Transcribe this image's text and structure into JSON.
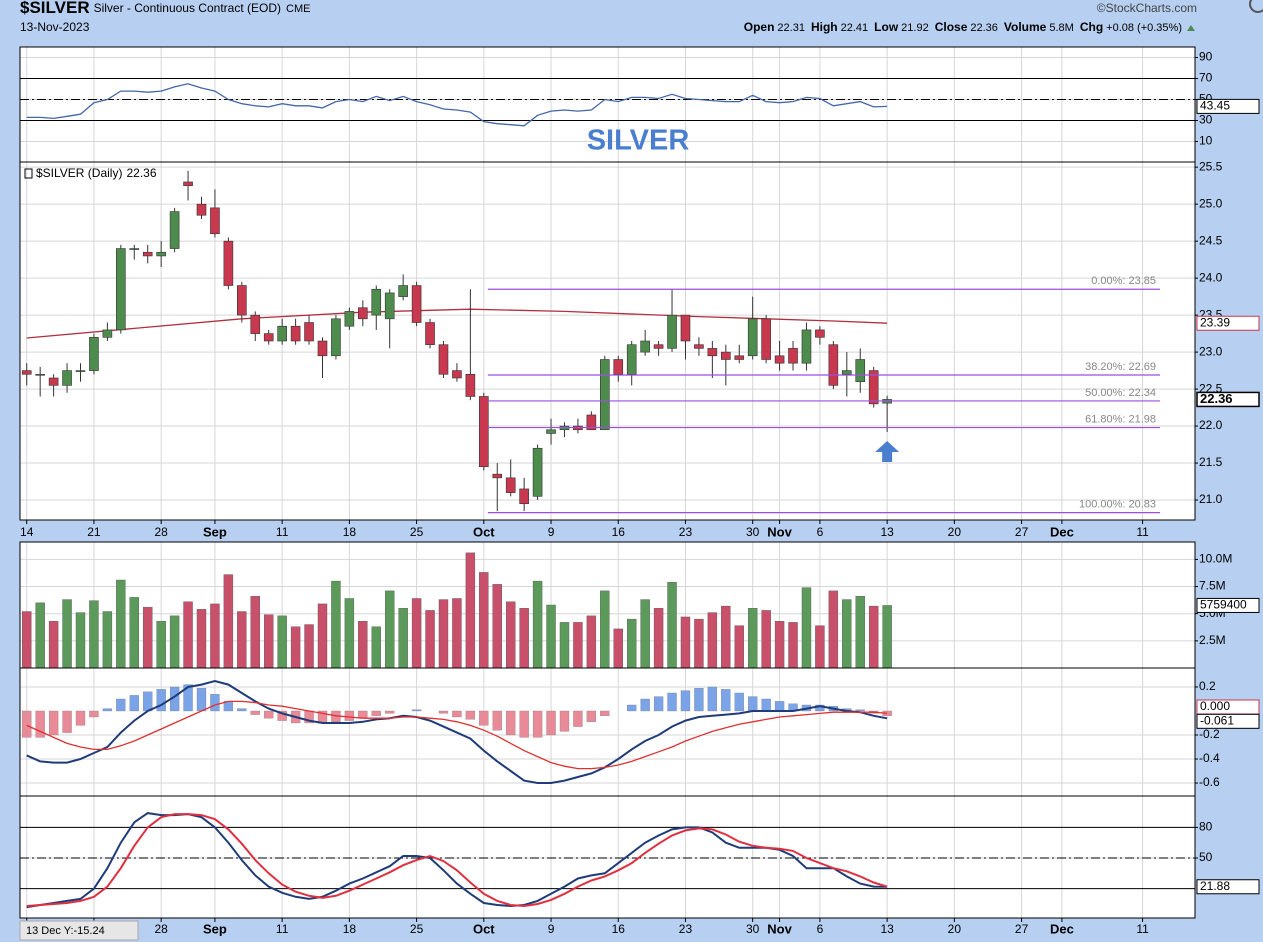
{
  "header": {
    "symbol": "$SILVER",
    "name": "Silver - Continuous Contract (EOD)",
    "exchange": "CME",
    "date": "13-Nov-2023",
    "copyright": "©StockCharts.com",
    "stats": [
      {
        "label": "Open",
        "value": 22.31
      },
      {
        "label": "High",
        "value": 22.41
      },
      {
        "label": "Low",
        "value": 21.92
      },
      {
        "label": "Close",
        "value": 22.36
      },
      {
        "label": "Volume",
        "value": "5.8M"
      },
      {
        "label": "Chg",
        "value": "+0.08 (+0.35%)"
      }
    ]
  },
  "cursor_readout": "13 Dec Y:-15.24",
  "chart_data": [
    {
      "type": "line",
      "ylim": [
        -9.5,
        100
      ],
      "yticks": [
        90,
        70,
        50,
        30,
        10
      ],
      "grid": true,
      "levels": [
        {
          "value": 70,
          "style": "solid"
        },
        {
          "value": 50,
          "style": "dashdot"
        },
        {
          "value": 30,
          "style": "solid"
        }
      ],
      "annotation": {
        "text": "SILVER",
        "color": "#4a7fd0"
      },
      "series": [
        {
          "color": "#4466aa",
          "values": [
            33,
            33,
            32,
            34,
            36,
            47,
            50,
            58,
            58,
            57,
            58,
            62,
            65,
            61,
            58,
            50,
            46,
            44,
            43,
            46,
            44,
            44,
            42,
            48,
            50,
            48,
            53,
            49,
            53,
            48,
            45,
            41,
            40,
            38,
            29,
            27,
            26,
            25,
            35,
            39,
            40,
            39,
            40,
            50,
            48,
            52,
            52,
            51,
            55,
            51,
            50,
            49,
            48,
            48,
            54,
            48,
            47,
            48,
            52,
            51,
            44,
            46,
            48,
            43,
            43.45
          ]
        }
      ]
    },
    {
      "type": "candlestick",
      "legend_text": "$SILVER (Daily)",
      "grid": true,
      "xlim": [
        -0.5,
        86.9
      ],
      "xticks": [
        {
          "value": 0,
          "label": "14"
        },
        {
          "value": 5,
          "label": "21"
        },
        {
          "value": 10,
          "label": "28"
        },
        {
          "value": 14,
          "label": "Sep"
        },
        {
          "value": 19,
          "label": "11"
        },
        {
          "value": 24,
          "label": "18"
        },
        {
          "value": 29,
          "label": "25"
        },
        {
          "value": 34,
          "label": "Oct"
        },
        {
          "value": 39,
          "label": "9"
        },
        {
          "value": 44,
          "label": "16"
        },
        {
          "value": 49,
          "label": "23"
        },
        {
          "value": 54,
          "label": "30"
        },
        {
          "value": 56,
          "label": "Nov"
        },
        {
          "value": 59,
          "label": "6"
        },
        {
          "value": 64,
          "label": "13"
        },
        {
          "value": 69,
          "label": "20"
        },
        {
          "value": 74,
          "label": "27"
        },
        {
          "value": 77,
          "label": "Dec"
        },
        {
          "value": 83,
          "label": "11"
        }
      ],
      "ylim": [
        20.73,
        25.57
      ],
      "yticks": [
        {
          "value": 21,
          "label": "21.0"
        },
        21.5,
        {
          "value": 22,
          "label": "22.0"
        },
        22.5,
        {
          "value": 23,
          "label": "23.0"
        },
        23.5,
        {
          "value": 24,
          "label": "24.0"
        },
        24.5,
        {
          "value": 25,
          "label": "25.0"
        },
        25.5
      ],
      "up_color": "#4e8c4e",
      "down_color": "#c8384e",
      "open": [
        22.75,
        22.7,
        22.65,
        22.55,
        22.75,
        22.75,
        23.2,
        23.3,
        24.4,
        24.35,
        24.3,
        24.4,
        25.3,
        25.0,
        24.95,
        24.5,
        23.9,
        23.5,
        23.25,
        23.15,
        23.35,
        23.4,
        23.15,
        22.95,
        23.35,
        23.6,
        23.5,
        23.45,
        23.75,
        23.9,
        23.4,
        23.1,
        22.75,
        22.7,
        22.4,
        21.35,
        21.3,
        21.15,
        21.05,
        21.9,
        21.95,
        22.0,
        22.15,
        21.95,
        22.9,
        22.7,
        23.0,
        23.1,
        23.05,
        23.5,
        23.1,
        23.05,
        23.0,
        22.95,
        22.95,
        23.45,
        22.95,
        23.05,
        22.85,
        23.3,
        23.1,
        22.7,
        22.6,
        22.75,
        22.31
      ],
      "high": [
        22.85,
        22.8,
        22.7,
        22.85,
        22.85,
        23.25,
        23.4,
        24.45,
        24.45,
        24.45,
        24.5,
        24.95,
        25.45,
        25.1,
        25.2,
        24.55,
        23.95,
        23.55,
        23.3,
        23.45,
        23.45,
        23.5,
        23.2,
        23.5,
        23.6,
        23.7,
        23.9,
        23.85,
        24.05,
        23.95,
        23.45,
        23.15,
        22.85,
        23.85,
        22.45,
        21.5,
        21.55,
        21.3,
        21.75,
        22.1,
        22.05,
        22.1,
        22.2,
        22.95,
        22.95,
        23.15,
        23.3,
        23.15,
        23.85,
        23.5,
        23.2,
        23.15,
        23.1,
        23.1,
        23.75,
        23.5,
        23.15,
        23.15,
        23.4,
        23.35,
        23.15,
        23.0,
        23.05,
        22.8,
        22.41
      ],
      "low": [
        22.55,
        22.4,
        22.4,
        22.45,
        22.6,
        22.7,
        23.15,
        23.25,
        24.25,
        24.2,
        24.15,
        24.35,
        25.05,
        24.8,
        24.55,
        23.85,
        23.4,
        23.15,
        23.1,
        23.1,
        23.1,
        23.1,
        22.65,
        22.9,
        23.3,
        23.35,
        23.3,
        23.05,
        23.7,
        23.35,
        23.05,
        22.65,
        22.6,
        22.35,
        21.4,
        20.85,
        21.05,
        20.85,
        21.0,
        21.75,
        21.85,
        21.9,
        21.95,
        21.95,
        22.6,
        22.55,
        22.95,
        22.95,
        23.0,
        22.9,
        22.95,
        22.65,
        22.55,
        22.85,
        22.9,
        22.85,
        22.75,
        22.75,
        22.75,
        23.1,
        22.5,
        22.4,
        22.45,
        22.25,
        21.92
      ],
      "close": [
        22.7,
        22.7,
        22.55,
        22.75,
        22.75,
        23.2,
        23.3,
        24.4,
        24.4,
        24.3,
        24.35,
        24.9,
        25.25,
        24.85,
        24.6,
        23.9,
        23.5,
        23.25,
        23.15,
        23.35,
        23.15,
        23.15,
        22.95,
        23.45,
        23.55,
        23.45,
        23.85,
        23.8,
        23.9,
        23.4,
        23.1,
        22.7,
        22.65,
        22.4,
        21.45,
        21.3,
        21.1,
        20.95,
        21.7,
        21.95,
        22.0,
        21.95,
        21.95,
        22.9,
        22.7,
        23.1,
        23.15,
        23.05,
        23.5,
        23.15,
        23.05,
        22.95,
        22.9,
        22.9,
        23.45,
        22.9,
        22.85,
        22.85,
        23.3,
        23.2,
        22.55,
        22.75,
        22.9,
        22.3,
        22.36
      ],
      "overlay": {
        "color": "#b03040",
        "x": [
          0,
          8,
          16,
          25,
          33,
          40,
          50,
          60,
          64
        ],
        "values": [
          23.19,
          23.32,
          23.45,
          23.54,
          23.58,
          23.55,
          23.48,
          23.42,
          23.39
        ]
      },
      "fib": {
        "color": "#9b4fe0",
        "x_range": [
          34.3,
          84.3
        ],
        "levels": [
          {
            "label": "0.00%: 23.85",
            "value": 23.85
          },
          {
            "label": "38.20%: 22.69",
            "value": 22.69
          },
          {
            "label": "50.00%: 22.34",
            "value": 22.34
          },
          {
            "label": "61.80%: 21.98",
            "value": 21.98
          },
          {
            "label": "100.00%: 20.83",
            "value": 20.83
          }
        ]
      }
    },
    {
      "type": "bar",
      "grid": true,
      "ylim": [
        0,
        11600000
      ],
      "yticks": [
        {
          "value": 2500000,
          "label": "2.5M"
        },
        {
          "value": 5000000,
          "label": "5.0M"
        },
        {
          "value": 7500000,
          "label": "7.5M"
        },
        {
          "value": 10000000,
          "label": "10.0M"
        }
      ],
      "up_color": "#5b9a5b",
      "down_color": "#c8506a",
      "values": [
        5200000,
        6000000,
        4300000,
        6300000,
        5100000,
        6200000,
        5200000,
        8100000,
        6500000,
        5600000,
        4300000,
        4800000,
        6100000,
        5400000,
        5900000,
        8600000,
        5200000,
        6600000,
        4900000,
        4800000,
        3800000,
        4000000,
        5900000,
        8000000,
        6400000,
        4300000,
        3800000,
        7100000,
        5500000,
        6400000,
        5300000,
        6300000,
        6400000,
        10600000,
        8800000,
        7700000,
        6100000,
        5500000,
        8000000,
        5800000,
        4200000,
        4200000,
        4800000,
        7100000,
        3600000,
        4500000,
        6300000,
        5500000,
        7900000,
        4700000,
        4500000,
        5100000,
        5700000,
        3900000,
        5500000,
        5300000,
        4300000,
        4200000,
        7400000,
        3900000,
        7100000,
        6300000,
        6600000,
        5700000,
        5759400
      ]
    },
    {
      "type": "macd",
      "grid": true,
      "ylim": [
        -0.708,
        0.358
      ],
      "yticks": [
        0.2,
        -0.2,
        -0.4,
        -0.6
      ],
      "zero_tag": {
        "value": 0,
        "label": "0.000"
      },
      "histogram": {
        "up_color": "#7aa3e8",
        "down_color": "#e88a98",
        "values": [
          -0.22,
          -0.22,
          -0.2,
          -0.18,
          -0.12,
          -0.05,
          0.02,
          0.1,
          0.13,
          0.16,
          0.18,
          0.2,
          0.22,
          0.19,
          0.14,
          0.08,
          0.02,
          -0.03,
          -0.06,
          -0.08,
          -0.1,
          -0.1,
          -0.1,
          -0.09,
          -0.08,
          -0.06,
          -0.04,
          -0.02,
          0.0,
          0.01,
          0.0,
          -0.02,
          -0.05,
          -0.07,
          -0.12,
          -0.16,
          -0.2,
          -0.22,
          -0.22,
          -0.2,
          -0.17,
          -0.13,
          -0.09,
          -0.04,
          0.0,
          0.05,
          0.1,
          0.12,
          0.15,
          0.17,
          0.19,
          0.2,
          0.18,
          0.15,
          0.12,
          0.1,
          0.08,
          0.06,
          0.05,
          0.05,
          0.04,
          0.02,
          0.01,
          -0.02,
          -0.04
        ]
      },
      "series": [
        {
          "color": "#1f3c78",
          "values": [
            -0.37,
            -0.42,
            -0.43,
            -0.43,
            -0.4,
            -0.35,
            -0.3,
            -0.18,
            -0.08,
            0.0,
            0.05,
            0.12,
            0.2,
            0.22,
            0.25,
            0.22,
            0.15,
            0.08,
            0.02,
            -0.02,
            -0.05,
            -0.08,
            -0.1,
            -0.1,
            -0.1,
            -0.09,
            -0.07,
            -0.06,
            -0.04,
            -0.05,
            -0.08,
            -0.13,
            -0.18,
            -0.23,
            -0.33,
            -0.42,
            -0.5,
            -0.58,
            -0.6,
            -0.6,
            -0.58,
            -0.55,
            -0.52,
            -0.47,
            -0.4,
            -0.32,
            -0.25,
            -0.2,
            -0.13,
            -0.08,
            -0.05,
            -0.04,
            -0.03,
            -0.02,
            0.0,
            0.0,
            0.0,
            0.0,
            0.02,
            0.04,
            0.02,
            0.0,
            -0.01,
            -0.04,
            -0.061
          ]
        },
        {
          "color": "#e03030",
          "values": [
            -0.12,
            -0.17,
            -0.22,
            -0.27,
            -0.3,
            -0.32,
            -0.32,
            -0.29,
            -0.25,
            -0.2,
            -0.15,
            -0.1,
            -0.05,
            0.0,
            0.05,
            0.08,
            0.08,
            0.07,
            0.05,
            0.04,
            0.02,
            0.0,
            -0.02,
            -0.04,
            -0.05,
            -0.06,
            -0.06,
            -0.06,
            -0.05,
            -0.05,
            -0.06,
            -0.07,
            -0.09,
            -0.12,
            -0.16,
            -0.21,
            -0.27,
            -0.33,
            -0.38,
            -0.43,
            -0.46,
            -0.48,
            -0.48,
            -0.47,
            -0.45,
            -0.42,
            -0.38,
            -0.34,
            -0.3,
            -0.25,
            -0.21,
            -0.17,
            -0.14,
            -0.11,
            -0.09,
            -0.07,
            -0.05,
            -0.04,
            -0.03,
            -0.02,
            -0.01,
            -0.01,
            -0.01,
            -0.01,
            -0.02
          ]
        }
      ]
    },
    {
      "type": "line",
      "grid": true,
      "ylim": [
        -8.7,
        110.7
      ],
      "yticks": [
        80,
        50
      ],
      "levels": [
        {
          "value": 80,
          "style": "solid"
        },
        {
          "value": 50,
          "style": "dashdot"
        },
        {
          "value": 20,
          "style": "solid"
        }
      ],
      "series": [
        {
          "color": "#1f3c78",
          "values": [
            2,
            4,
            6,
            8,
            10,
            20,
            40,
            65,
            85,
            94,
            92,
            92,
            93,
            90,
            80,
            65,
            48,
            33,
            22,
            16,
            12,
            10,
            12,
            18,
            25,
            30,
            36,
            42,
            52,
            52,
            50,
            38,
            25,
            15,
            6,
            4,
            3,
            4,
            8,
            15,
            22,
            30,
            33,
            35,
            45,
            55,
            65,
            72,
            78,
            80,
            80,
            75,
            65,
            60,
            60,
            60,
            58,
            52,
            40,
            40,
            40,
            32,
            25,
            22,
            21.88
          ]
        },
        {
          "color": "#e03040",
          "values": [
            3,
            4,
            5,
            6,
            8,
            12,
            22,
            40,
            62,
            80,
            90,
            93,
            93,
            92,
            88,
            78,
            64,
            48,
            35,
            24,
            17,
            13,
            11,
            13,
            18,
            24,
            30,
            36,
            43,
            48,
            52,
            47,
            38,
            26,
            15,
            8,
            4,
            3,
            5,
            9,
            15,
            22,
            28,
            32,
            38,
            45,
            55,
            64,
            72,
            77,
            79,
            78,
            73,
            66,
            62,
            60,
            59,
            57,
            50,
            45,
            40,
            37,
            32,
            26,
            22
          ]
        }
      ]
    }
  ]
}
